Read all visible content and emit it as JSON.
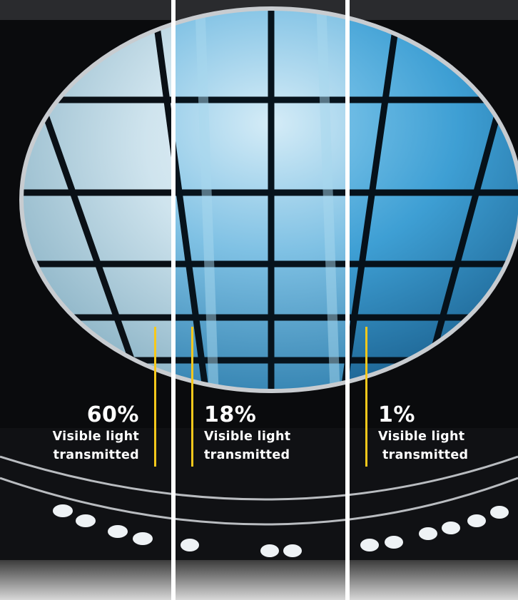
{
  "panels": [
    {
      "value": "60%",
      "caption_line1": "Visible light",
      "caption_line2": "transmitted",
      "tint": "#cfe6f2"
    },
    {
      "value": "18%",
      "caption_line1": "Visible light",
      "caption_line2": "transmitted",
      "tint": "#7fc1e4"
    },
    {
      "value": "1%",
      "caption_line1": "Visible light",
      "caption_line2": "transmitted",
      "tint": "#3e9fd4"
    }
  ],
  "colors": {
    "accent_line": "#f7c81b",
    "divider": "#ffffff",
    "ceiling": "#0a0b0d"
  }
}
